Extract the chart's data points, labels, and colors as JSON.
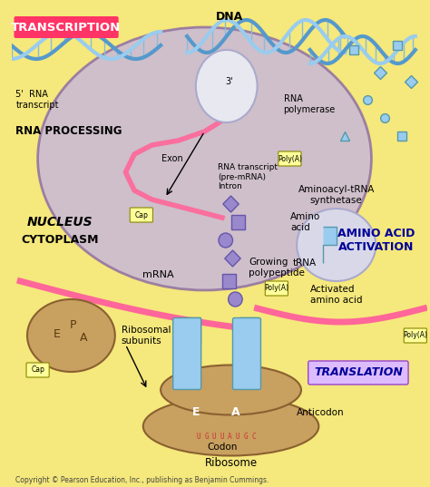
{
  "bg_color": "#f5e87c",
  "nucleus_color": "#c8b8d8",
  "nucleus_border": "#9070a0",
  "cytoplasm_text_color": "#000000",
  "transcription_label_bg": "#ff3366",
  "transcription_label_fg": "#ffffff",
  "translation_label_bg": "#cc99ff",
  "translation_label_fg": "#000080",
  "amino_acid_label_bg": "#f5e87c",
  "amino_acid_label_fg": "#000080",
  "dna_color1": "#5599cc",
  "dna_color2": "#99ccee",
  "mrna_color": "#ff6699",
  "ribosome_color": "#c8a060",
  "trna_color": "#99ccee",
  "polypeptide_color": "#9988cc",
  "cap_label_bg": "#ffff99",
  "poly_label_bg": "#ffff99",
  "copyright_text": "Copyright © Pearson Education, Inc., publishing as Benjamin Cummings.",
  "title_transcription": "TRANSCRIPTION",
  "title_rna_processing": "RNA PROCESSING",
  "title_nucleus": "NUCLEUS",
  "title_cytoplasm": "CYTOPLASM",
  "title_translation": "TRANSLATION",
  "title_amino_acid": "AMINO ACID\nACTIVATION",
  "label_dna": "DNA",
  "label_rna_transcript": "5'  RNA\ntranscript",
  "label_rna_polymerase": "RNA\npolymerase",
  "label_exon": "Exon",
  "label_rna_transcript2": "RNA transcript\n(pre-mRNA)\nIntron",
  "label_mrna": "mRNA",
  "label_growing": "Growing\npolypeptide",
  "label_ribosomal": "Ribosomal\nsubunits",
  "label_activated": "Activated\namino acid",
  "label_amino_acid": "Amino\nacid",
  "label_trna": "tRNA",
  "label_aminoacyl": "Aminoacyl-tRNA\nsynthetase",
  "label_anticodon": "Anticodon",
  "label_codon": "Codon",
  "label_ribosome": "Ribosome"
}
